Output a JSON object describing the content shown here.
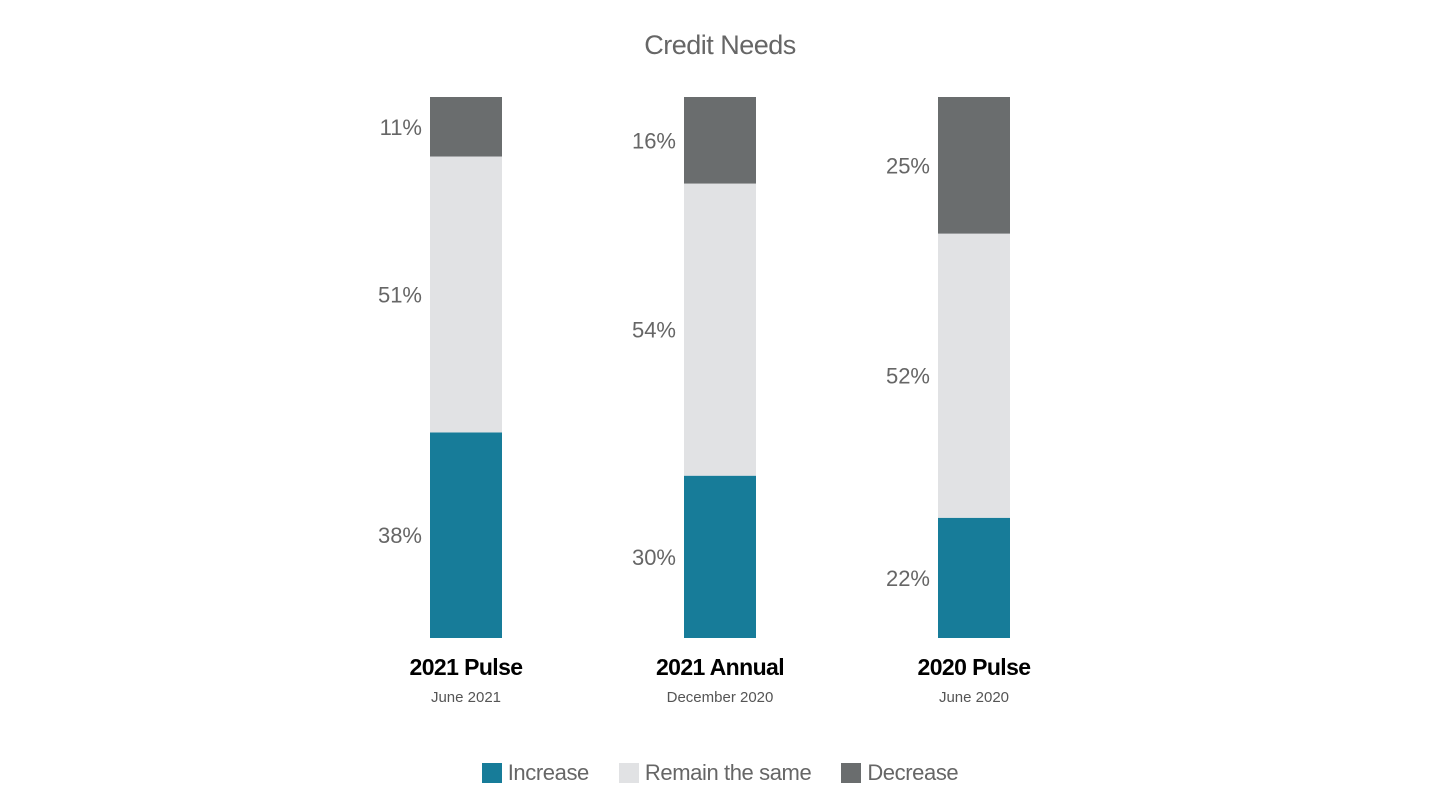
{
  "chart_data": {
    "type": "bar",
    "stacked": true,
    "title": "Credit Needs",
    "categories": [
      "2021 Pulse",
      "2021 Annual",
      "2020 Pulse"
    ],
    "subtitles": [
      "June 2021",
      "December 2020",
      "June 2020"
    ],
    "series": [
      {
        "name": "Increase",
        "color": "#177c99",
        "values": [
          38,
          30,
          22
        ],
        "labels": [
          "38%",
          "30%",
          "22%"
        ]
      },
      {
        "name": "Remain the same",
        "color": "#e1e2e4",
        "values": [
          51,
          54,
          52
        ],
        "labels": [
          "51%",
          "54%",
          "52%"
        ]
      },
      {
        "name": "Decrease",
        "color": "#6a6d6e",
        "values": [
          11,
          16,
          25
        ],
        "labels": [
          "11%",
          "16%",
          "25%"
        ]
      }
    ],
    "legend_position": "bottom",
    "grid": false,
    "ylim": [
      0,
      100
    ]
  }
}
